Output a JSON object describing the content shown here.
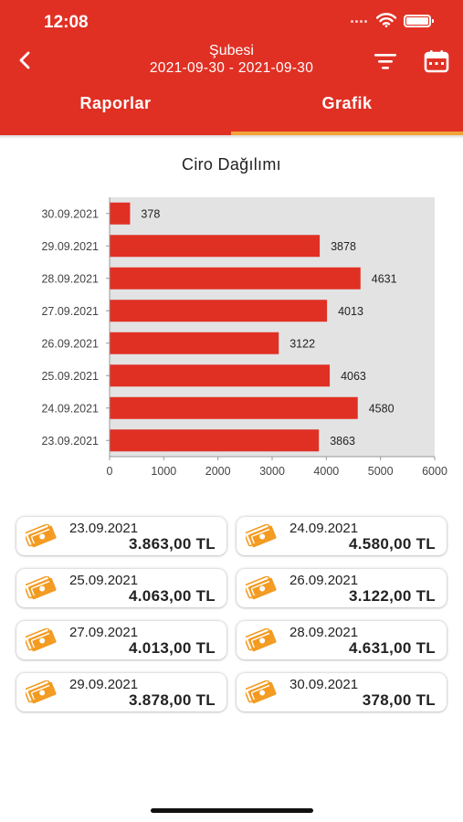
{
  "status_bar": {
    "time": "12:08"
  },
  "header": {
    "title": "Şubesi",
    "date_range": "2021-09-30 - 2021-09-30",
    "accent_color": "#e03024",
    "indicator_color": "#f2a33a",
    "icons": {
      "back": "chevron-left-icon",
      "filter": "filter-icon",
      "calendar": "calendar-icon"
    }
  },
  "tabs": [
    {
      "label": "Raporlar",
      "active": false
    },
    {
      "label": "Grafik",
      "active": true
    }
  ],
  "chart_title": "Ciro Dağılımı",
  "chart_data": {
    "type": "bar",
    "orientation": "horizontal",
    "title": "Ciro Dağılımı",
    "categories": [
      "30.09.2021",
      "29.09.2021",
      "28.09.2021",
      "27.09.2021",
      "26.09.2021",
      "25.09.2021",
      "24.09.2021",
      "23.09.2021"
    ],
    "values": [
      378,
      3878,
      4631,
      4013,
      3122,
      4063,
      4580,
      3863
    ],
    "xlim": [
      0,
      6000
    ],
    "xticks": [
      0,
      1000,
      2000,
      3000,
      4000,
      5000,
      6000
    ],
    "bar_color": "#e03024",
    "plot_background": "#e3e3e3",
    "data_labels": true,
    "legend": "none"
  },
  "cards": [
    {
      "date": "23.09.2021",
      "amount": "3.863,00 TL"
    },
    {
      "date": "24.09.2021",
      "amount": "4.580,00 TL"
    },
    {
      "date": "25.09.2021",
      "amount": "4.063,00 TL"
    },
    {
      "date": "26.09.2021",
      "amount": "3.122,00 TL"
    },
    {
      "date": "27.09.2021",
      "amount": "4.013,00 TL"
    },
    {
      "date": "28.09.2021",
      "amount": "4.631,00 TL"
    },
    {
      "date": "29.09.2021",
      "amount": "3.878,00 TL"
    },
    {
      "date": "30.09.2021",
      "amount": "378,00 TL"
    }
  ],
  "card_icon": "money-bill-icon",
  "card_icon_color": "#f39a1f"
}
